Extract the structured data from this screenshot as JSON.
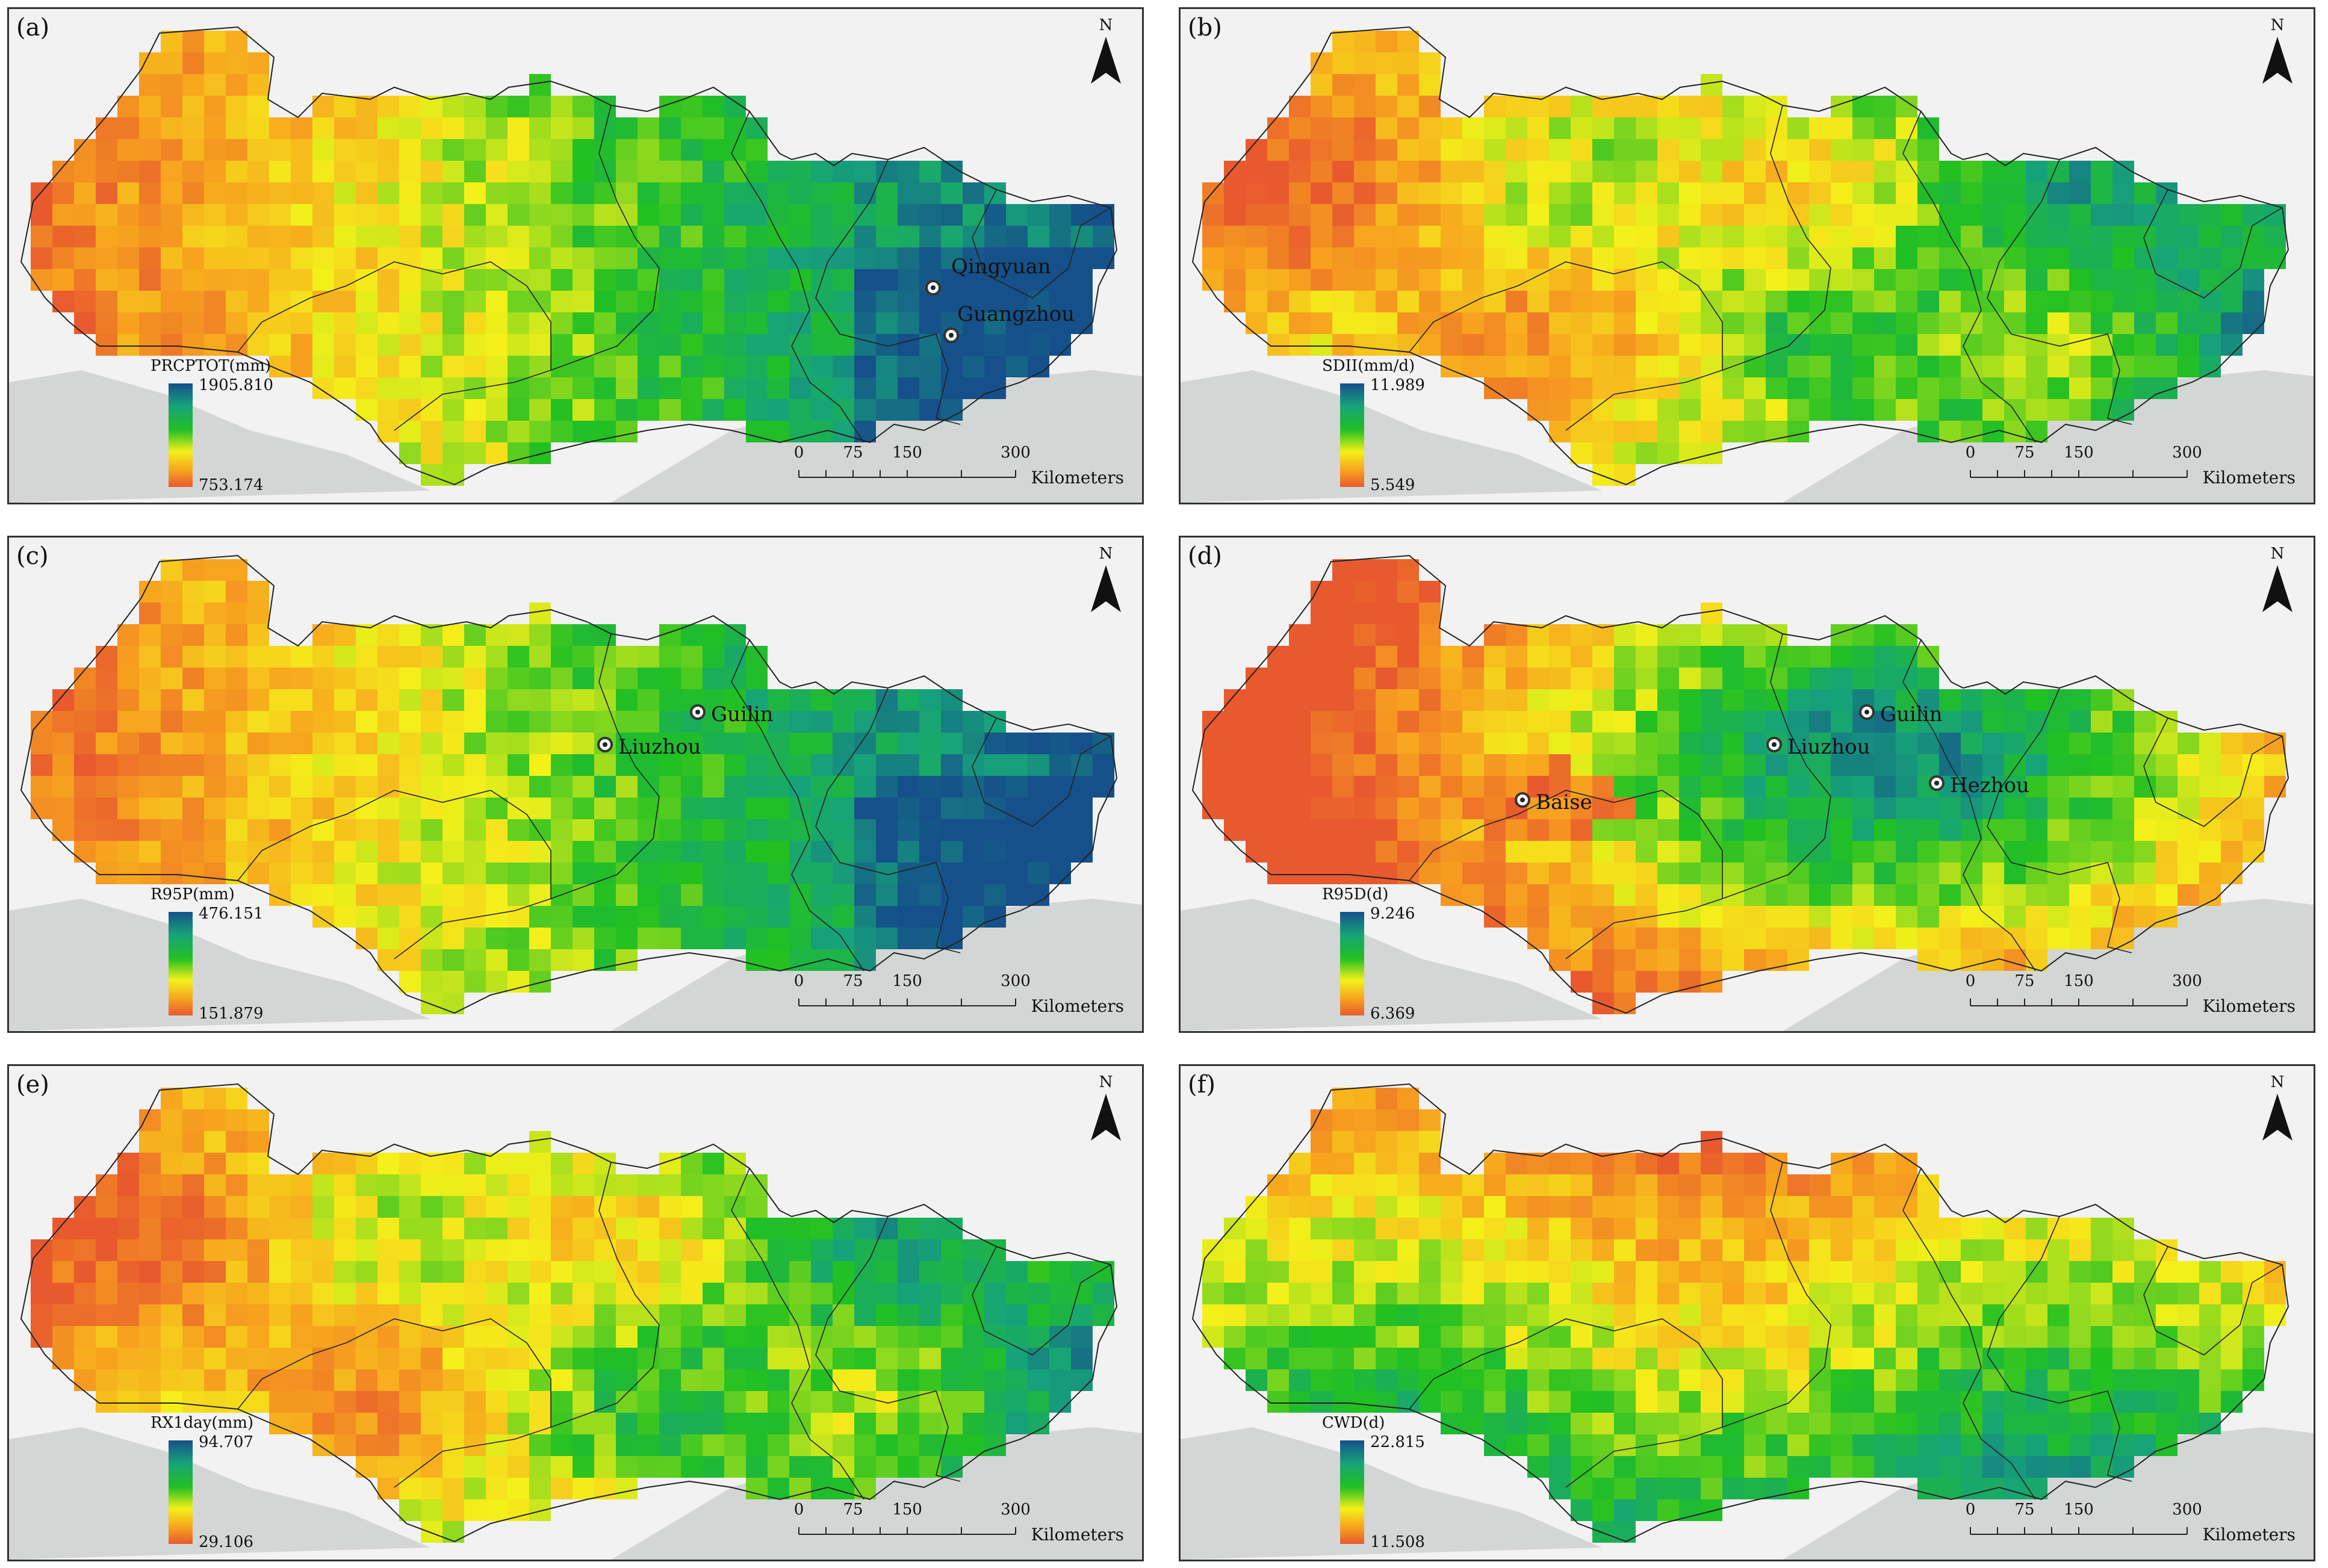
{
  "figure": {
    "panels": [
      {
        "label": "(a)",
        "legend_title": "PRCPTOT(mm)",
        "legend_max": "1905.810",
        "legend_min": "753.174",
        "pattern": "west_low_east_high",
        "cities": [
          {
            "name": "Qingyuan"
          },
          {
            "name": "Guangzhou"
          }
        ]
      },
      {
        "label": "(b)",
        "legend_title": "SDII(mm/d)",
        "legend_max": "11.989",
        "legend_min": "5.549",
        "pattern": "west_low_east_high_mixed",
        "cities": []
      },
      {
        "label": "(c)",
        "legend_title": "R95P(mm)",
        "legend_max": "476.151",
        "legend_min": "151.879",
        "pattern": "west_low_east_high",
        "cities": [
          {
            "name": "Guilin"
          },
          {
            "name": "Liuzhou"
          }
        ]
      },
      {
        "label": "(d)",
        "legend_title": "R95D(d)",
        "legend_max": "9.246",
        "legend_min": "6.369",
        "pattern": "center_high",
        "cities": [
          {
            "name": "Guilin"
          },
          {
            "name": "Liuzhou"
          },
          {
            "name": "Hezhou"
          },
          {
            "name": "Baise"
          }
        ]
      },
      {
        "label": "(e)",
        "legend_title": "RX1day(mm)",
        "legend_max": "94.707",
        "legend_min": "29.106",
        "pattern": "west_low_east_high_mixed",
        "cities": []
      },
      {
        "label": "(f)",
        "legend_title": "CWD(d)",
        "legend_max": "22.815",
        "legend_min": "11.508",
        "pattern": "north_low_south_high",
        "cities": []
      }
    ],
    "north_label": "N",
    "scale_ticks": [
      "0",
      "75",
      "150",
      "300"
    ],
    "scale_unit": "Kilometers",
    "colors": {
      "high": "#15508a",
      "mid_high": "#17a37a",
      "mid": "#22c022",
      "mid_low": "#f4f01a",
      "low_mid": "#f7a31e",
      "low": "#e8592e",
      "land_bg": "#d4d6d6",
      "panel_bg": "#f2f2f2"
    }
  }
}
